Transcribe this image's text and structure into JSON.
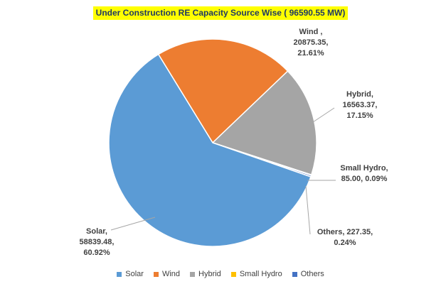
{
  "chart_data": {
    "type": "pie",
    "title": "Under Construction RE Capacity Source Wise ( 96590.55 MW)",
    "slices": [
      {
        "name": "Solar",
        "value": 58839.48,
        "percent": 60.92,
        "color": "#5b9bd5",
        "label_lines": [
          "Solar,",
          "58839.48,",
          "60.92%"
        ]
      },
      {
        "name": "Wind",
        "value": 20875.35,
        "percent": 21.61,
        "color": "#ed7d31",
        "label_lines": [
          "Wind ,",
          "20875.35,",
          "21.61%"
        ]
      },
      {
        "name": "Hybrid",
        "value": 16563.37,
        "percent": 17.15,
        "color": "#a5a5a5",
        "label_lines": [
          "Hybrid,",
          "16563.37,",
          "17.15%"
        ]
      },
      {
        "name": "Small Hydro",
        "value": 85.0,
        "percent": 0.09,
        "color": "#ffc000",
        "label_lines": [
          "Small Hydro,",
          "85.00, 0.09%"
        ]
      },
      {
        "name": "Others",
        "value": 227.35,
        "percent": 0.24,
        "color": "#4472c4",
        "label_lines": [
          "Others, 227.35,",
          "0.24%"
        ]
      }
    ],
    "legend": [
      "Solar",
      "Wind",
      "Hybrid",
      "Small Hydro",
      "Others"
    ],
    "legend_position": "bottom"
  }
}
